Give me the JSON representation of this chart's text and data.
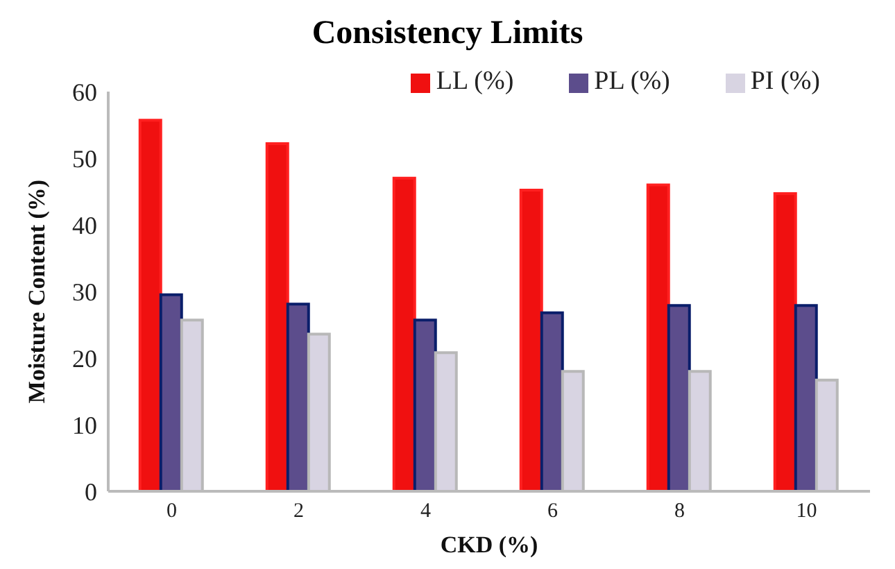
{
  "chart_data": {
    "type": "bar",
    "title": "Consistency Limits",
    "xlabel": "CKD (%)",
    "ylabel": "Moisture Content (%)",
    "categories": [
      "0",
      "2",
      "4",
      "6",
      "8",
      "10"
    ],
    "series": [
      {
        "name": "LL (%)",
        "color": "#f01010",
        "values": [
          55.7,
          52.2,
          47,
          45.2,
          46,
          44.7
        ]
      },
      {
        "name": "PL (%)",
        "color": "#5c4d8c",
        "values": [
          29.5,
          28.1,
          25.7,
          26.8,
          27.9,
          27.9
        ]
      },
      {
        "name": "PI (%)",
        "color": "#d8d4e2",
        "values": [
          25.7,
          23.6,
          20.8,
          18,
          18,
          16.7
        ]
      }
    ],
    "ylim": [
      0,
      60
    ],
    "yticks": [
      0,
      10,
      20,
      30,
      40,
      50,
      60
    ],
    "grid": false,
    "legend": "top right"
  }
}
